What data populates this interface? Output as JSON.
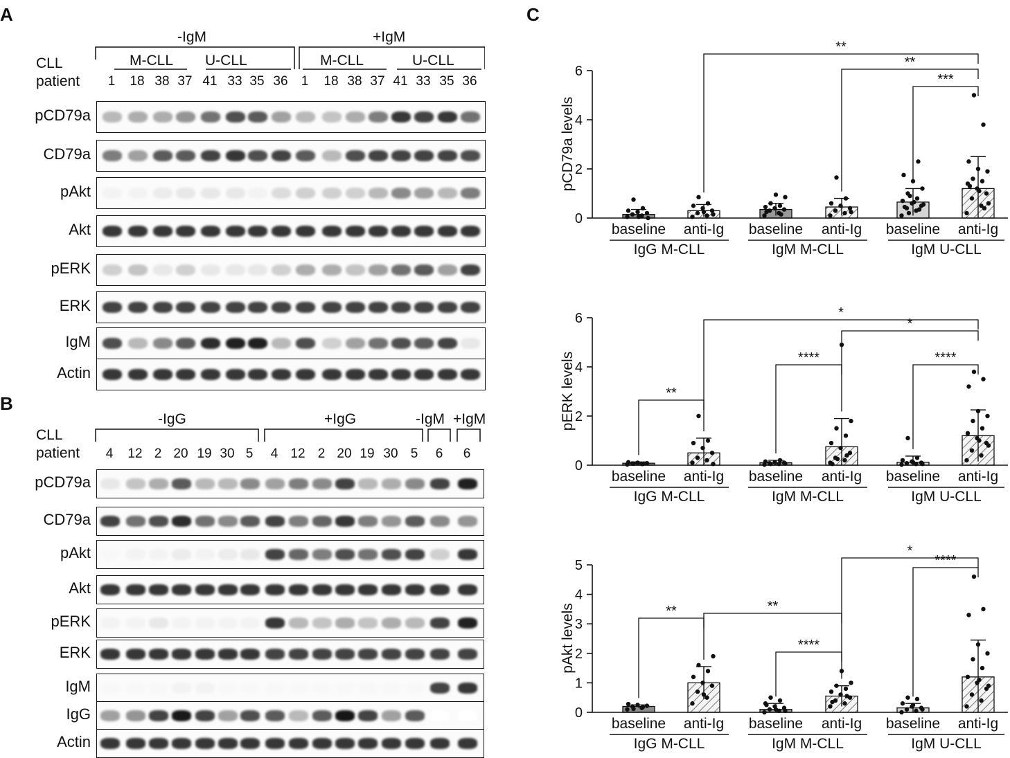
{
  "panels": {
    "a": "A",
    "b": "B",
    "c": "C"
  },
  "panel_a": {
    "groups": [
      "-IgM",
      "+IgM"
    ],
    "subgroups": [
      "M-CLL",
      "U-CLL",
      "M-CLL",
      "U-CLL"
    ],
    "row_title_1": "CLL",
    "row_title_2": "patient",
    "lanes": [
      "1",
      "18",
      "38",
      "37",
      "41",
      "33",
      "35",
      "36",
      "1",
      "18",
      "38",
      "37",
      "41",
      "33",
      "35",
      "36"
    ],
    "blots": [
      {
        "label": "pCD79a",
        "intensity": [
          0.3,
          0.35,
          0.35,
          0.45,
          0.6,
          0.75,
          0.7,
          0.4,
          0.3,
          0.25,
          0.35,
          0.55,
          0.85,
          0.8,
          0.85,
          0.6
        ]
      },
      {
        "label": "CD79a",
        "intensity": [
          0.55,
          0.4,
          0.7,
          0.7,
          0.8,
          0.85,
          0.75,
          0.8,
          0.7,
          0.3,
          0.75,
          0.8,
          0.8,
          0.8,
          0.8,
          0.75
        ]
      },
      {
        "label": "pAkt",
        "intensity": [
          0.05,
          0.05,
          0.08,
          0.1,
          0.1,
          0.1,
          0.05,
          0.15,
          0.2,
          0.2,
          0.2,
          0.3,
          0.5,
          0.4,
          0.3,
          0.55
        ]
      },
      {
        "label": "Akt",
        "intensity": [
          0.85,
          0.85,
          0.85,
          0.85,
          0.85,
          0.85,
          0.85,
          0.85,
          0.85,
          0.85,
          0.85,
          0.85,
          0.85,
          0.85,
          0.85,
          0.85
        ]
      },
      {
        "label": "pERK",
        "intensity": [
          0.2,
          0.25,
          0.1,
          0.2,
          0.1,
          0.1,
          0.1,
          0.2,
          0.35,
          0.35,
          0.25,
          0.4,
          0.6,
          0.7,
          0.4,
          0.8
        ]
      },
      {
        "label": "ERK",
        "intensity": [
          0.8,
          0.8,
          0.8,
          0.8,
          0.8,
          0.8,
          0.8,
          0.8,
          0.8,
          0.8,
          0.8,
          0.8,
          0.8,
          0.8,
          0.8,
          0.8
        ]
      },
      {
        "label": "IgM",
        "intensity": [
          0.75,
          0.3,
          0.5,
          0.7,
          0.9,
          0.95,
          0.95,
          0.3,
          0.75,
          0.2,
          0.4,
          0.6,
          0.75,
          0.7,
          0.8,
          0.1
        ]
      },
      {
        "label": "Actin",
        "intensity": [
          0.85,
          0.85,
          0.85,
          0.85,
          0.85,
          0.85,
          0.85,
          0.85,
          0.85,
          0.85,
          0.85,
          0.85,
          0.85,
          0.85,
          0.85,
          0.85
        ]
      }
    ]
  },
  "panel_b": {
    "groups": [
      "-IgG",
      "+IgG",
      "-IgM",
      "+IgM"
    ],
    "row_title_1": "CLL",
    "row_title_2": "patient",
    "lanes": [
      "4",
      "12",
      "2",
      "20",
      "19",
      "30",
      "5",
      "4",
      "12",
      "2",
      "20",
      "19",
      "30",
      "5",
      "6",
      "6"
    ],
    "blots": [
      {
        "label": "pCD79a",
        "intensity": [
          0.1,
          0.25,
          0.35,
          0.7,
          0.3,
          0.3,
          0.5,
          0.4,
          0.55,
          0.5,
          0.8,
          0.3,
          0.35,
          0.5,
          0.8,
          0.95
        ]
      },
      {
        "label": "CD79a",
        "intensity": [
          0.8,
          0.6,
          0.75,
          0.9,
          0.6,
          0.5,
          0.7,
          0.8,
          0.55,
          0.65,
          0.85,
          0.55,
          0.45,
          0.7,
          0.5,
          0.45
        ]
      },
      {
        "label": "pAkt",
        "intensity": [
          0.03,
          0.05,
          0.05,
          0.08,
          0.05,
          0.08,
          0.1,
          0.8,
          0.65,
          0.55,
          0.75,
          0.6,
          0.75,
          0.8,
          0.2,
          0.85
        ]
      },
      {
        "label": "Akt",
        "intensity": [
          0.85,
          0.85,
          0.85,
          0.85,
          0.85,
          0.85,
          0.85,
          0.85,
          0.85,
          0.85,
          0.85,
          0.85,
          0.85,
          0.85,
          0.85,
          0.85
        ]
      },
      {
        "label": "pERK",
        "intensity": [
          0.05,
          0.05,
          0.1,
          0.05,
          0.05,
          0.05,
          0.05,
          0.85,
          0.3,
          0.25,
          0.35,
          0.25,
          0.35,
          0.3,
          0.8,
          0.95
        ]
      },
      {
        "label": "ERK",
        "intensity": [
          0.85,
          0.85,
          0.85,
          0.85,
          0.85,
          0.85,
          0.85,
          0.8,
          0.8,
          0.8,
          0.8,
          0.8,
          0.8,
          0.8,
          0.8,
          0.8
        ]
      },
      {
        "label": "IgM",
        "intensity": [
          0.03,
          0.03,
          0.03,
          0.05,
          0.05,
          0.03,
          0.03,
          0.03,
          0.03,
          0.03,
          0.03,
          0.03,
          0.03,
          0.03,
          0.8,
          0.85
        ]
      },
      {
        "label": "IgG",
        "intensity": [
          0.4,
          0.45,
          0.8,
          0.98,
          0.8,
          0.4,
          0.75,
          0.7,
          0.3,
          0.7,
          0.99,
          0.8,
          0.4,
          0.7,
          0.0,
          0.0
        ]
      },
      {
        "label": "Actin",
        "intensity": [
          0.85,
          0.85,
          0.85,
          0.85,
          0.85,
          0.85,
          0.85,
          0.85,
          0.85,
          0.85,
          0.85,
          0.85,
          0.85,
          0.85,
          0.85,
          0.85
        ]
      }
    ]
  },
  "chart_data": [
    {
      "type": "bar",
      "ylabel": "pCD79a levels",
      "ylim": [
        0,
        6
      ],
      "yticks": [
        "0",
        "2",
        "4",
        "6"
      ],
      "categories": [
        "baseline",
        "anti-Ig",
        "baseline",
        "anti-Ig",
        "baseline",
        "anti-Ig"
      ],
      "group_labels": [
        "IgG M-CLL",
        "IgM M-CLL",
        "IgM U-CLL"
      ],
      "values": [
        0.15,
        0.3,
        0.35,
        0.45,
        0.65,
        1.2
      ],
      "sd": [
        0.2,
        0.25,
        0.25,
        0.35,
        0.55,
        1.3
      ],
      "points": [
        [
          0.05,
          0.1,
          0.15,
          0.2,
          0.25,
          0.3,
          0.4,
          0.75,
          0.0,
          0.05
        ],
        [
          0.05,
          0.1,
          0.2,
          0.3,
          0.4,
          0.5,
          0.6,
          0.85,
          0.15,
          0.25
        ],
        [
          0.1,
          0.2,
          0.3,
          0.35,
          0.4,
          0.45,
          0.5,
          0.6,
          0.85,
          0.95,
          0.25,
          0.15
        ],
        [
          0.1,
          0.2,
          0.3,
          0.4,
          0.5,
          0.6,
          0.8,
          1.65,
          0.25
        ],
        [
          0.1,
          0.3,
          0.4,
          0.5,
          0.6,
          0.7,
          0.8,
          1.0,
          1.2,
          1.5,
          1.75,
          2.3,
          0.2,
          0.55,
          0.65,
          0.45,
          0.35,
          0.9
        ],
        [
          0.2,
          0.5,
          0.8,
          1.0,
          1.2,
          1.4,
          1.5,
          1.6,
          1.9,
          2.0,
          2.3,
          3.8,
          5.0,
          0.6,
          1.1,
          1.3,
          0.4
        ]
      ],
      "brackets": [
        {
          "from": 1,
          "to": 5,
          "label": "**"
        },
        {
          "from": 3,
          "to": 5,
          "label": "**"
        },
        {
          "from": 4,
          "to": 5,
          "label": "***"
        }
      ]
    },
    {
      "type": "bar",
      "ylabel": "pERK levels",
      "ylim": [
        0,
        6
      ],
      "yticks": [
        "0",
        "2",
        "4",
        "6"
      ],
      "categories": [
        "baseline",
        "anti-Ig",
        "baseline",
        "anti-Ig",
        "baseline",
        "anti-Ig"
      ],
      "group_labels": [
        "IgG M-CLL",
        "IgM M-CLL",
        "IgM U-CLL"
      ],
      "values": [
        0.08,
        0.5,
        0.1,
        0.75,
        0.12,
        1.2
      ],
      "sd": [
        0.05,
        0.6,
        0.1,
        1.15,
        0.25,
        1.05
      ],
      "points": [
        [
          0.03,
          0.05,
          0.07,
          0.08,
          0.1,
          0.12,
          0.05,
          0.06
        ],
        [
          0.1,
          0.2,
          0.3,
          0.5,
          0.7,
          0.9,
          1.0,
          2.0,
          0.05
        ],
        [
          0.02,
          0.05,
          0.08,
          0.1,
          0.12,
          0.15,
          0.2,
          0.05,
          0.07
        ],
        [
          0.1,
          0.2,
          0.3,
          0.5,
          0.7,
          0.9,
          1.2,
          1.5,
          1.8,
          4.9,
          0.05,
          0.4,
          0.25
        ],
        [
          0.02,
          0.05,
          0.08,
          0.1,
          0.15,
          0.2,
          0.3,
          1.1,
          0.05,
          0.12
        ],
        [
          0.2,
          0.4,
          0.6,
          0.9,
          1.1,
          1.3,
          1.5,
          1.8,
          2.0,
          2.2,
          3.2,
          3.5,
          3.8,
          0.8,
          1.0
        ]
      ],
      "brackets": [
        {
          "from": 0,
          "to": 1,
          "label": "**"
        },
        {
          "from": 1,
          "to": 5,
          "label": "*"
        },
        {
          "from": 3,
          "to": 5,
          "label": "*"
        },
        {
          "from": 2,
          "to": 3,
          "label": "****"
        },
        {
          "from": 4,
          "to": 5,
          "label": "****"
        }
      ]
    },
    {
      "type": "bar",
      "ylabel": "pAkt levels",
      "ylim": [
        0,
        5
      ],
      "yticks": [
        "0",
        "1",
        "2",
        "3",
        "4",
        "5"
      ],
      "categories": [
        "baseline",
        "anti-Ig",
        "baseline",
        "anti-Ig",
        "baseline",
        "anti-Ig"
      ],
      "group_labels": [
        "IgG M-CLL",
        "IgM M-CLL",
        "IgM U-CLL"
      ],
      "values": [
        0.2,
        1.0,
        0.1,
        0.55,
        0.15,
        1.2
      ],
      "sd": [
        0.05,
        0.55,
        0.2,
        0.35,
        0.15,
        1.25
      ],
      "points": [
        [
          0.1,
          0.15,
          0.2,
          0.22,
          0.25,
          0.28,
          0.18,
          0.12
        ],
        [
          0.3,
          0.5,
          0.7,
          0.9,
          1.0,
          1.2,
          1.4,
          1.6,
          1.9,
          0.6
        ],
        [
          0.0,
          0.05,
          0.1,
          0.15,
          0.2,
          0.3,
          0.4,
          0.5,
          0.05,
          0.1,
          0.25
        ],
        [
          0.2,
          0.3,
          0.4,
          0.5,
          0.6,
          0.7,
          0.8,
          0.9,
          1.0,
          1.4,
          0.35,
          0.55
        ],
        [
          0.0,
          0.05,
          0.1,
          0.15,
          0.2,
          0.3,
          0.45,
          0.5,
          0.1,
          0.25
        ],
        [
          0.2,
          0.4,
          0.6,
          0.8,
          1.0,
          1.2,
          1.5,
          1.8,
          2.0,
          2.3,
          3.3,
          3.5,
          4.6,
          0.9,
          1.1
        ]
      ],
      "brackets": [
        {
          "from": 0,
          "to": 1,
          "label": "**"
        },
        {
          "from": 1,
          "to": 3,
          "label": "**"
        },
        {
          "from": 2,
          "to": 3,
          "label": "****"
        },
        {
          "from": 3,
          "to": 5,
          "label": "*"
        },
        {
          "from": 4,
          "to": 5,
          "label": "****"
        }
      ]
    }
  ]
}
